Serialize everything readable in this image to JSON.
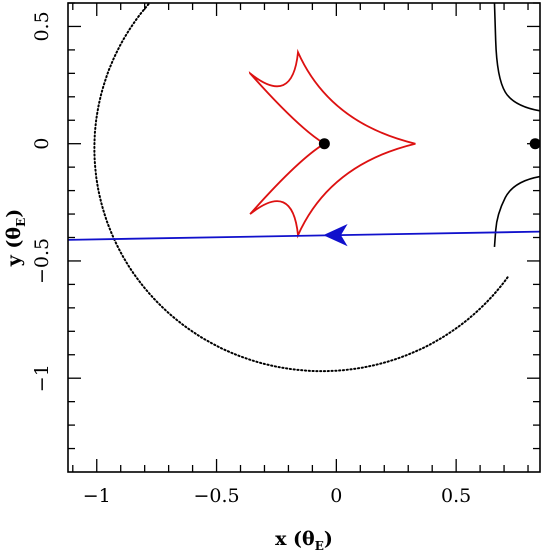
{
  "chart_data": {
    "type": "line",
    "title": "",
    "xlabel": {
      "main": "x (θ",
      "sub": "E",
      "close": ")"
    },
    "ylabel": {
      "main": "y (θ",
      "sub": "E",
      "close": ")"
    },
    "xlim": [
      -1.12,
      0.85
    ],
    "ylim": [
      -1.4,
      0.6
    ],
    "x_major_ticks": [
      -1,
      -0.5,
      0,
      0.5
    ],
    "x_tick_labels": [
      "−1",
      "−0.5",
      "0",
      "0.5"
    ],
    "x_minor_step": 0.1,
    "y_major_ticks": [
      -1,
      -0.5,
      0,
      0.5
    ],
    "y_tick_labels": [
      "−1",
      "−0.5",
      "0",
      "0.5"
    ],
    "y_minor_step": 0.1,
    "grid": false,
    "legend": "none",
    "colors": {
      "caustic": "#dd1111",
      "trajectory": "#1111cc",
      "critical": "#000000",
      "lens": "#000000"
    },
    "lens_masses": [
      {
        "x": -0.05,
        "y": 0.0
      },
      {
        "x": 0.83,
        "y": 0.0
      }
    ],
    "caustic": {
      "vertices": [
        {
          "x": -0.36,
          "y": 0.3
        },
        {
          "x": -0.16,
          "y": 0.39
        },
        {
          "x": 0.33,
          "y": 0.0
        },
        {
          "x": -0.16,
          "y": -0.39
        },
        {
          "x": -0.36,
          "y": -0.3
        },
        {
          "x": -0.05,
          "y": 0.0
        }
      ]
    },
    "critical_curve_outer": {
      "center": {
        "x": -0.06,
        "y": -0.02
      },
      "radius": 0.95,
      "note_points": [
        {
          "x": -1.0,
          "y": 0.0
        },
        {
          "x": -0.06,
          "y": -0.97
        },
        {
          "x": 0.65,
          "y": -0.5
        }
      ]
    },
    "critical_curve_right": {
      "upper": [
        {
          "x": 0.85,
          "y": 0.14
        },
        {
          "x": 0.74,
          "y": 0.16
        },
        {
          "x": 0.67,
          "y": 0.28
        },
        {
          "x": 0.66,
          "y": 0.6
        }
      ],
      "lower": [
        {
          "x": 0.85,
          "y": -0.14
        },
        {
          "x": 0.74,
          "y": -0.16
        },
        {
          "x": 0.67,
          "y": -0.3
        },
        {
          "x": 0.66,
          "y": -0.44
        }
      ]
    },
    "trajectory": {
      "points": [
        {
          "x": 0.85,
          "y": -0.375
        },
        {
          "x": -1.12,
          "y": -0.41
        }
      ],
      "arrow_at": {
        "x": 0.0,
        "y": -0.39
      }
    }
  }
}
